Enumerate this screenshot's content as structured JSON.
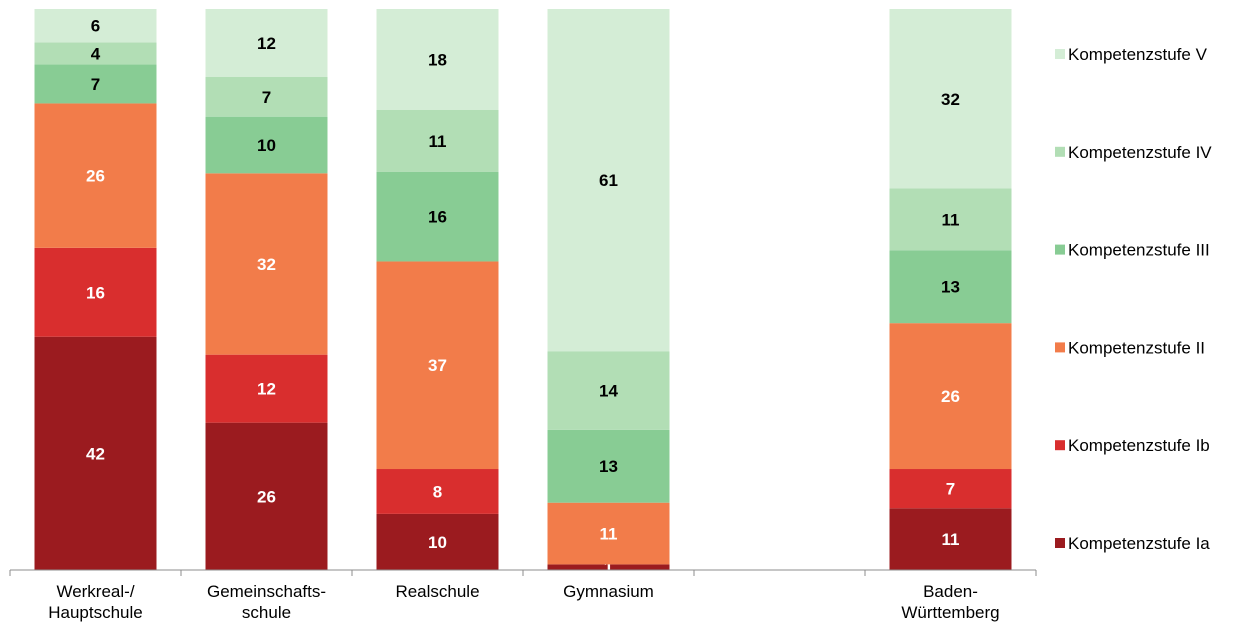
{
  "chart_data": {
    "type": "bar",
    "stacked": true,
    "title": "",
    "xlabel": "",
    "ylabel": "",
    "ylim": [
      0,
      100
    ],
    "grid": false,
    "legend_position": "right",
    "categories": [
      [
        "Werkreal-/",
        "Hauptschule"
      ],
      [
        "Gemeinschafts-",
        "schule"
      ],
      [
        "Realschule"
      ],
      [
        "Gymnasium"
      ],
      [
        ""
      ],
      [
        "Baden-",
        "Württemberg"
      ]
    ],
    "series": [
      {
        "name": "Kompetenzstufe Ia",
        "color": "#9B1B1F",
        "label_color": "#ffffff",
        "values": [
          42,
          26,
          10,
          1,
          null,
          11
        ]
      },
      {
        "name": "Kompetenzstufe Ib",
        "color": "#D92E2E",
        "label_color": "#ffffff",
        "values": [
          16,
          12,
          8,
          0,
          null,
          7
        ]
      },
      {
        "name": "Kompetenzstufe II",
        "color": "#F27C4A",
        "label_color": "#ffffff",
        "values": [
          26,
          32,
          37,
          11,
          null,
          26
        ]
      },
      {
        "name": "Kompetenzstufe III",
        "color": "#88CC94",
        "label_color": "#000000",
        "values": [
          7,
          10,
          16,
          13,
          null,
          13
        ]
      },
      {
        "name": "Kompetenzstufe IV",
        "color": "#B2DEB5",
        "label_color": "#000000",
        "values": [
          4,
          7,
          11,
          14,
          null,
          11
        ]
      },
      {
        "name": "Kompetenzstufe V",
        "color": "#D4EDD6",
        "label_color": "#000000",
        "values": [
          6,
          12,
          18,
          61,
          null,
          32
        ]
      }
    ]
  }
}
